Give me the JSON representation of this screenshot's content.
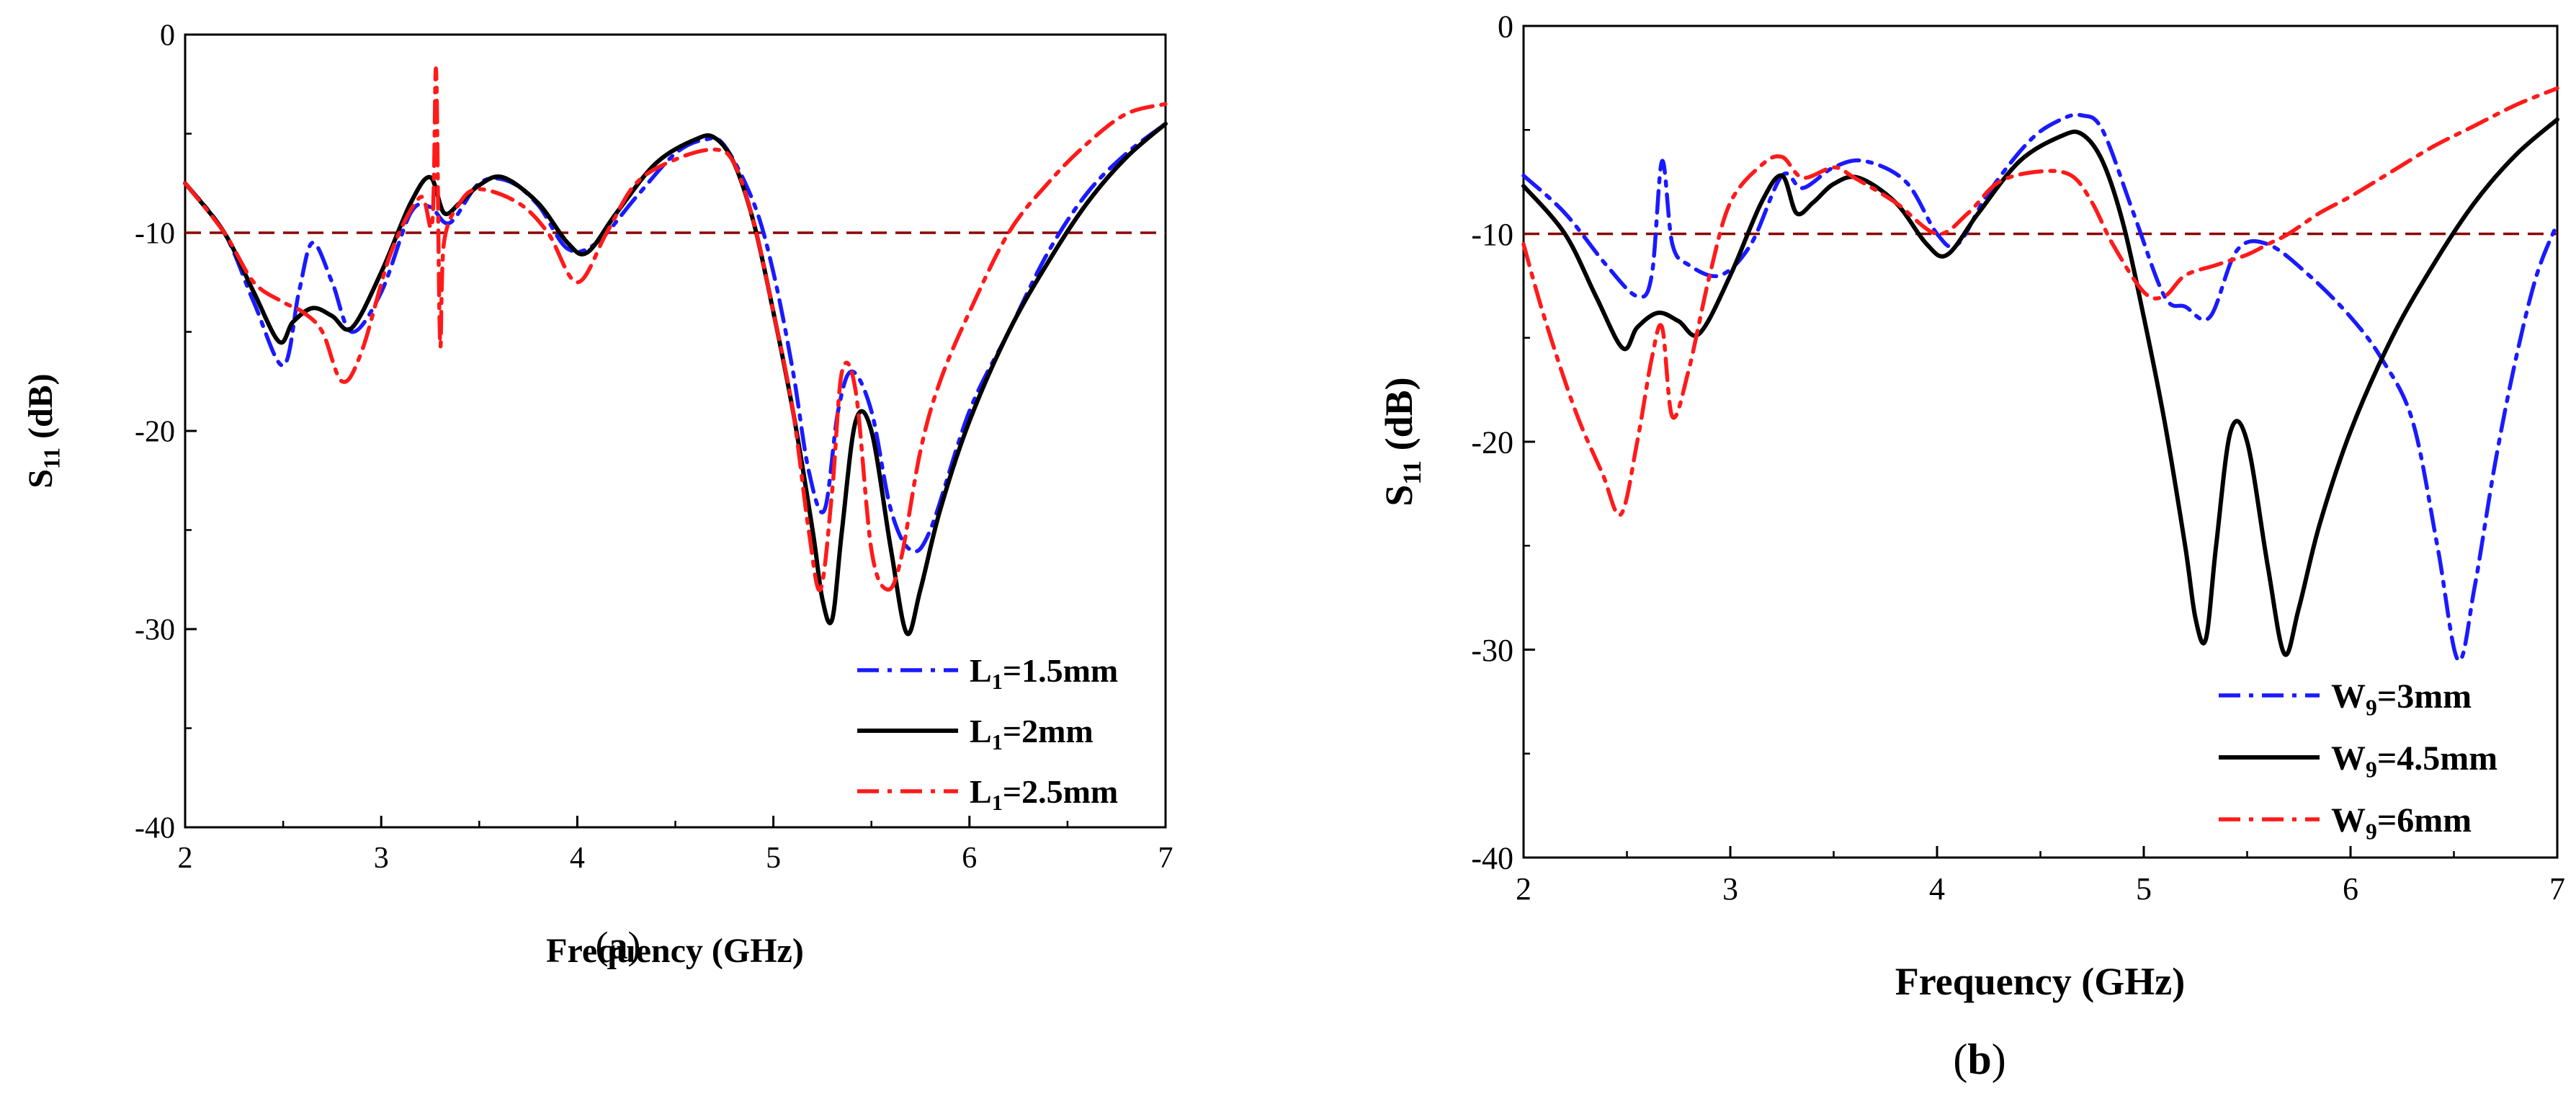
{
  "figure": {
    "ref_line_color": "#8B0000",
    "series_colors": [
      "#1a1aff",
      "#000000",
      "#ff1a1a"
    ]
  },
  "chart_data": [
    {
      "type": "line",
      "panel_label": "(a)",
      "title": "",
      "xlabel": "Frequency (GHz)",
      "ylabel_main": "S",
      "ylabel_sub": "11",
      "ylabel_unit": " (dB)",
      "xlim": [
        2,
        7
      ],
      "ylim": [
        -40,
        0
      ],
      "xticks": [
        2,
        3,
        4,
        5,
        6,
        7
      ],
      "yticks": [
        0,
        -10,
        -20,
        -30,
        -40
      ],
      "reference_line": -10,
      "legend_position": "bottom-right",
      "series": [
        {
          "name_main": "L",
          "name_sub": "1",
          "name_rest": "=1.5mm",
          "style": "dash-dot",
          "color": "#1a1aff",
          "x": [
            2.0,
            2.2,
            2.35,
            2.5,
            2.58,
            2.65,
            2.75,
            2.85,
            3.0,
            3.15,
            3.25,
            3.35,
            3.5,
            3.65,
            3.8,
            3.95,
            4.1,
            4.3,
            4.5,
            4.65,
            4.75,
            4.9,
            5.0,
            5.1,
            5.18,
            5.26,
            5.33,
            5.4,
            5.5,
            5.6,
            5.7,
            5.8,
            6.0,
            6.2,
            6.4,
            6.6,
            6.8,
            7.0
          ],
          "y": [
            -7.5,
            -10,
            -13.5,
            -16.7,
            -13,
            -10.5,
            -12.5,
            -15,
            -13,
            -9,
            -8.7,
            -9.5,
            -7.5,
            -7.4,
            -8.6,
            -10.8,
            -10.5,
            -8.2,
            -6,
            -5.3,
            -5.6,
            -8.5,
            -12,
            -17,
            -22,
            -24,
            -19,
            -17,
            -19,
            -24,
            -26,
            -25,
            -19,
            -15,
            -11,
            -8,
            -6,
            -4.5
          ]
        },
        {
          "name_main": "L",
          "name_sub": "1",
          "name_rest": "=2mm",
          "style": "solid",
          "color": "#000000",
          "x": [
            2.0,
            2.2,
            2.35,
            2.48,
            2.55,
            2.65,
            2.75,
            2.85,
            3.0,
            3.15,
            3.25,
            3.32,
            3.4,
            3.5,
            3.62,
            3.8,
            3.95,
            4.05,
            4.2,
            4.4,
            4.6,
            4.7,
            4.8,
            4.9,
            5.0,
            5.1,
            5.2,
            5.25,
            5.3,
            5.35,
            5.42,
            5.5,
            5.6,
            5.68,
            5.75,
            5.85,
            6.0,
            6.2,
            6.4,
            6.6,
            6.8,
            7.0
          ],
          "y": [
            -7.5,
            -10,
            -13,
            -15.5,
            -14.5,
            -13.8,
            -14.2,
            -14.8,
            -12,
            -8.5,
            -7.2,
            -9,
            -8.5,
            -7.6,
            -7.2,
            -8.5,
            -10.5,
            -11,
            -9,
            -6.5,
            -5.3,
            -5.2,
            -6.5,
            -9.5,
            -14,
            -19,
            -25,
            -28.5,
            -29.5,
            -25,
            -19.5,
            -20,
            -26,
            -30.2,
            -28,
            -24,
            -19.5,
            -15,
            -11.5,
            -8.5,
            -6.2,
            -4.5
          ]
        },
        {
          "name_main": "L",
          "name_sub": "1",
          "name_rest": "=2.5mm",
          "style": "dash-dot",
          "color": "#ff1a1a",
          "x": [
            2.0,
            2.2,
            2.35,
            2.5,
            2.6,
            2.7,
            2.8,
            2.9,
            3.05,
            3.2,
            3.26,
            3.28,
            3.3,
            3.32,
            3.4,
            3.5,
            3.7,
            3.85,
            4.0,
            4.15,
            4.3,
            4.5,
            4.7,
            4.8,
            4.9,
            5.0,
            5.1,
            5.18,
            5.24,
            5.3,
            5.35,
            5.42,
            5.5,
            5.58,
            5.65,
            5.75,
            5.85,
            6.0,
            6.2,
            6.4,
            6.6,
            6.8,
            7.0
          ],
          "y": [
            -7.5,
            -10,
            -12.5,
            -13.5,
            -14,
            -15,
            -17.5,
            -16,
            -11,
            -8.2,
            -9.5,
            -1.8,
            -15.5,
            -10.5,
            -8.5,
            -7.8,
            -8.5,
            -10,
            -12.5,
            -10,
            -7.5,
            -6.3,
            -5.8,
            -6.5,
            -9.5,
            -14,
            -19,
            -25,
            -28,
            -23,
            -17,
            -18,
            -26,
            -28,
            -26.5,
            -21,
            -17.5,
            -14,
            -10,
            -7.5,
            -5.5,
            -4,
            -3.5
          ]
        }
      ]
    },
    {
      "type": "line",
      "panel_label": "(b)",
      "title": "",
      "xlabel": "Frequency (GHz)",
      "ylabel_main": "S",
      "ylabel_sub": "11",
      "ylabel_unit": " (dB)",
      "xlim": [
        2,
        7
      ],
      "ylim": [
        -40,
        0
      ],
      "xticks": [
        2,
        3,
        4,
        5,
        6,
        7
      ],
      "yticks": [
        0,
        -10,
        -20,
        -30,
        -40
      ],
      "reference_line": -10,
      "legend_position": "bottom-right",
      "series": [
        {
          "name_main": "W",
          "name_sub": "9",
          "name_rest": "=3mm",
          "style": "dash-dot",
          "color": "#1a1aff",
          "x": [
            2.0,
            2.2,
            2.4,
            2.55,
            2.62,
            2.67,
            2.72,
            2.8,
            2.95,
            3.1,
            3.25,
            3.35,
            3.5,
            3.65,
            3.85,
            4.0,
            4.1,
            4.25,
            4.45,
            4.6,
            4.7,
            4.8,
            4.95,
            5.1,
            5.2,
            5.32,
            5.45,
            5.6,
            5.8,
            6.0,
            6.15,
            6.3,
            6.42,
            6.52,
            6.6,
            6.7,
            6.8,
            6.9,
            7.0
          ],
          "y": [
            -7.2,
            -9,
            -11.5,
            -13,
            -12,
            -6.5,
            -10.5,
            -11.5,
            -12,
            -10.5,
            -7.2,
            -7.8,
            -6.8,
            -6.5,
            -7.5,
            -10,
            -10.5,
            -8,
            -5.5,
            -4.5,
            -4.3,
            -5,
            -9,
            -13,
            -13.5,
            -14,
            -10.8,
            -10.5,
            -12,
            -14,
            -16,
            -19,
            -25,
            -30.5,
            -27,
            -21,
            -16,
            -12,
            -9.5
          ]
        },
        {
          "name_main": "W",
          "name_sub": "9",
          "name_rest": "=4.5mm",
          "style": "solid",
          "color": "#000000",
          "x": [
            2.0,
            2.2,
            2.35,
            2.48,
            2.55,
            2.65,
            2.75,
            2.85,
            3.0,
            3.15,
            3.25,
            3.32,
            3.4,
            3.5,
            3.62,
            3.8,
            3.95,
            4.05,
            4.2,
            4.4,
            4.6,
            4.7,
            4.8,
            4.9,
            5.0,
            5.1,
            5.2,
            5.25,
            5.3,
            5.35,
            5.42,
            5.5,
            5.6,
            5.68,
            5.75,
            5.85,
            6.0,
            6.2,
            6.4,
            6.6,
            6.8,
            7.0
          ],
          "y": [
            -7.7,
            -10,
            -13,
            -15.5,
            -14.5,
            -13.8,
            -14.2,
            -14.8,
            -12,
            -8.5,
            -7.2,
            -9,
            -8.5,
            -7.6,
            -7.3,
            -8.5,
            -10.5,
            -11,
            -9,
            -6.5,
            -5.3,
            -5.2,
            -6.5,
            -9.5,
            -14,
            -19,
            -25,
            -28.5,
            -29.5,
            -25,
            -19.5,
            -20,
            -26,
            -30.2,
            -28,
            -24,
            -19.5,
            -15,
            -11.5,
            -8.5,
            -6.2,
            -4.5
          ]
        },
        {
          "name_main": "W",
          "name_sub": "9",
          "name_rest": "=6mm",
          "style": "dash-dot",
          "color": "#ff1a1a",
          "x": [
            2.0,
            2.1,
            2.25,
            2.38,
            2.47,
            2.55,
            2.62,
            2.67,
            2.72,
            2.8,
            2.9,
            3.0,
            3.15,
            3.25,
            3.35,
            3.5,
            3.6,
            3.8,
            4.0,
            4.15,
            4.3,
            4.5,
            4.65,
            4.75,
            4.85,
            5.0,
            5.1,
            5.2,
            5.35,
            5.5,
            5.6,
            5.7,
            5.85,
            6.0,
            6.2,
            6.4,
            6.6,
            6.8,
            7.0
          ],
          "y": [
            -10.5,
            -14,
            -18.5,
            -21.5,
            -23.5,
            -20,
            -16,
            -14.5,
            -18.8,
            -16.5,
            -12,
            -8.5,
            -6.7,
            -6.3,
            -7.3,
            -6.8,
            -7.3,
            -8.5,
            -10,
            -9,
            -7.5,
            -7,
            -7.2,
            -8.5,
            -10.5,
            -12.8,
            -13,
            -12,
            -11.5,
            -11,
            -10.5,
            -10,
            -9,
            -8.2,
            -7,
            -5.8,
            -4.8,
            -3.8,
            -3
          ]
        }
      ]
    }
  ]
}
